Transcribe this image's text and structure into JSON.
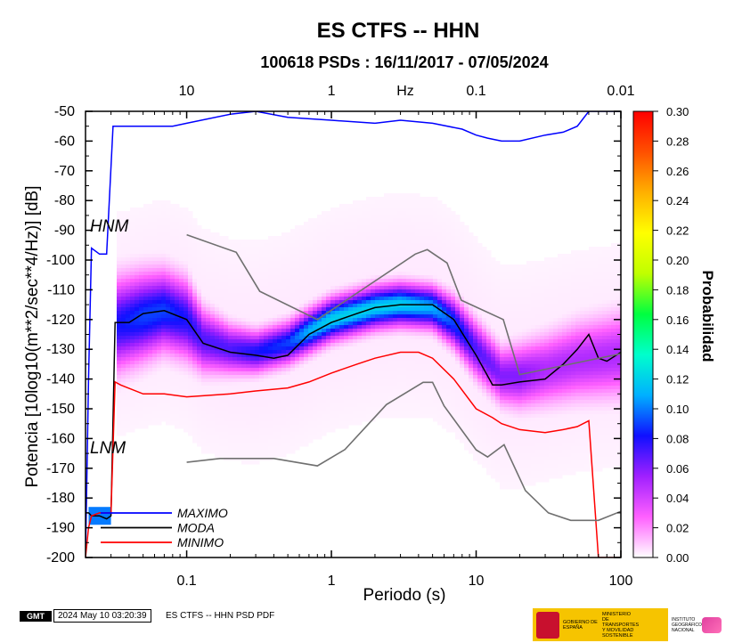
{
  "chart_data": {
    "type": "line",
    "title": "ES CTFS -- HHN",
    "subtitle": "100618 PSDs : 16/11/2017 - 07/05/2024",
    "xlabel": "Periodo (s)",
    "ylabel": "Potencia [10log10(m**2/sec**4/Hz)] [dB]",
    "x_scale": "log",
    "xlim": [
      0.02,
      100
    ],
    "ylim": [
      -200,
      -50
    ],
    "x_ticks": [
      "0.1",
      "1",
      "10",
      "100"
    ],
    "x_tick_values": [
      0.1,
      1,
      10,
      100
    ],
    "y_ticks": [
      "-50",
      "-60",
      "-70",
      "-80",
      "-90",
      "-100",
      "-110",
      "-120",
      "-130",
      "-140",
      "-150",
      "-160",
      "-170",
      "-180",
      "-190",
      "-200"
    ],
    "top_axis": {
      "label": "Hz",
      "ticks": [
        "10",
        "1",
        "0.1",
        "0.01"
      ],
      "tick_period_values": [
        0.1,
        1,
        10,
        100
      ]
    },
    "colorbar": {
      "label": "Probabilidad",
      "range": [
        0.0,
        0.3
      ],
      "ticks": [
        "0.00",
        "0.02",
        "0.04",
        "0.06",
        "0.08",
        "0.10",
        "0.12",
        "0.14",
        "0.16",
        "0.18",
        "0.20",
        "0.22",
        "0.24",
        "0.26",
        "0.28",
        "0.30"
      ],
      "colors": [
        "#ffffff",
        "#ff60ff",
        "#a020ff",
        "#1010ff",
        "#00b0ff",
        "#00ffcc",
        "#00ff40",
        "#c0ff00",
        "#ffff00",
        "#ffb000",
        "#ff5000",
        "#ff0000"
      ]
    },
    "model_labels": {
      "high": "HNM",
      "low": "LNM"
    },
    "legend": {
      "placement": "bottom-left",
      "items": [
        {
          "label": "MAXIMO",
          "color": "#0000ff"
        },
        {
          "label": "MODA",
          "color": "#000000"
        },
        {
          "label": "MINIMO",
          "color": "#ff0000"
        }
      ]
    },
    "series": [
      {
        "name": "MAXIMO",
        "color": "#0000ff",
        "x": [
          0.02,
          0.021,
          0.022,
          0.025,
          0.028,
          0.031,
          0.05,
          0.08,
          0.1,
          0.2,
          0.3,
          0.5,
          1,
          2,
          3,
          5,
          8,
          10,
          12,
          15,
          20,
          30,
          40,
          50,
          60,
          80,
          100
        ],
        "y": [
          -200,
          -140,
          -96,
          -98,
          -98,
          -55,
          -55,
          -55,
          -54,
          -51,
          -50,
          -52,
          -53,
          -54,
          -53,
          -54,
          -56,
          -58,
          -59,
          -60,
          -60,
          -58,
          -57,
          -55,
          -50,
          -50,
          -50
        ]
      },
      {
        "name": "MODA",
        "color": "#000000",
        "x": [
          0.02,
          0.021,
          0.022,
          0.025,
          0.028,
          0.03,
          0.032,
          0.035,
          0.04,
          0.05,
          0.07,
          0.1,
          0.13,
          0.2,
          0.3,
          0.4,
          0.5,
          0.7,
          1,
          1.5,
          2,
          3,
          4,
          5,
          7,
          10,
          13,
          15,
          20,
          30,
          40,
          50,
          60,
          70,
          80,
          100
        ],
        "y": [
          -185,
          -185,
          -186,
          -186,
          -187,
          -186,
          -121,
          -121,
          -121,
          -118,
          -117,
          -120,
          -128,
          -131,
          -132,
          -133,
          -132,
          -125,
          -121,
          -118,
          -116,
          -115,
          -115,
          -115,
          -120,
          -132,
          -142,
          -142,
          -141,
          -140,
          -135,
          -130,
          -125,
          -133,
          -134,
          -131
        ]
      },
      {
        "name": "MINIMO",
        "color": "#ff0000",
        "x": [
          0.02,
          0.021,
          0.022,
          0.025,
          0.03,
          0.032,
          0.035,
          0.05,
          0.07,
          0.1,
          0.2,
          0.3,
          0.5,
          0.7,
          1,
          1.5,
          2,
          3,
          4,
          5,
          7,
          10,
          13,
          15,
          20,
          30,
          40,
          50,
          60,
          70,
          80,
          100
        ],
        "y": [
          -200,
          -190,
          -186,
          -185,
          -185,
          -141,
          -142,
          -145,
          -145,
          -146,
          -145,
          -144,
          -143,
          -141,
          -138,
          -135,
          -133,
          -131,
          -131,
          -133,
          -140,
          -150,
          -153,
          -155,
          -157,
          -158,
          -157,
          -156,
          -154,
          -200,
          -200,
          -200
        ]
      },
      {
        "name": "NHNM",
        "color": "#707070",
        "x": [
          0.1,
          0.22,
          0.32,
          0.8,
          3.8,
          4.6,
          6.3,
          7.9,
          15.4,
          20,
          354
        ],
        "y": [
          -91.5,
          -97.4,
          -110.5,
          -120,
          -98,
          -96.5,
          -101,
          -113.5,
          -120,
          -138.5,
          -126
        ]
      },
      {
        "name": "NLNM",
        "color": "#707070",
        "x": [
          0.1,
          0.17,
          0.4,
          0.8,
          1.24,
          2.4,
          4.3,
          5,
          6,
          10,
          12,
          15.6,
          21.9,
          31.6,
          45,
          70,
          101
        ],
        "y": [
          -168,
          -166.7,
          -166.7,
          -169.2,
          -163.7,
          -148.6,
          -141.1,
          -141.1,
          -149,
          -163.8,
          -166.2,
          -162.1,
          -177.5,
          -185,
          -187.5,
          -187.5,
          -184.4
        ]
      }
    ],
    "density_ridge": {
      "note_excluded": true,
      "x": [
        0.032,
        0.05,
        0.07,
        0.1,
        0.13,
        0.2,
        0.3,
        0.5,
        0.7,
        1,
        2,
        3,
        5,
        7,
        10,
        15,
        20,
        30,
        50,
        100
      ],
      "center": [
        -122,
        -119,
        -117,
        -120,
        -127,
        -130,
        -131,
        -128,
        -124,
        -120,
        -116,
        -115,
        -116,
        -121,
        -130,
        -139,
        -139,
        -137,
        -134,
        -132
      ],
      "half_width": [
        13,
        12,
        11,
        11,
        9,
        7,
        6,
        6,
        6,
        6,
        6,
        6,
        6,
        7,
        8,
        8,
        9,
        10,
        11,
        12
      ],
      "peak": [
        0.08,
        0.09,
        0.09,
        0.08,
        0.07,
        0.07,
        0.08,
        0.09,
        0.11,
        0.12,
        0.12,
        0.12,
        0.11,
        0.09,
        0.07,
        0.06,
        0.06,
        0.05,
        0.05,
        0.05
      ]
    }
  },
  "footer": {
    "logo_text": "GMT",
    "timestamp": "2024 May 10 03:20:39",
    "caption": "ES CTFS -- HHN PSD PDF",
    "gov_line1": "GOBIERNO DE ESPAÑA",
    "gov_line2": "MINISTERIO DE TRANSPORTES Y MOVILIDAD SOSTENIBLE",
    "ign_text": "INSTITUTO GEOGRÁFICO NACIONAL"
  }
}
